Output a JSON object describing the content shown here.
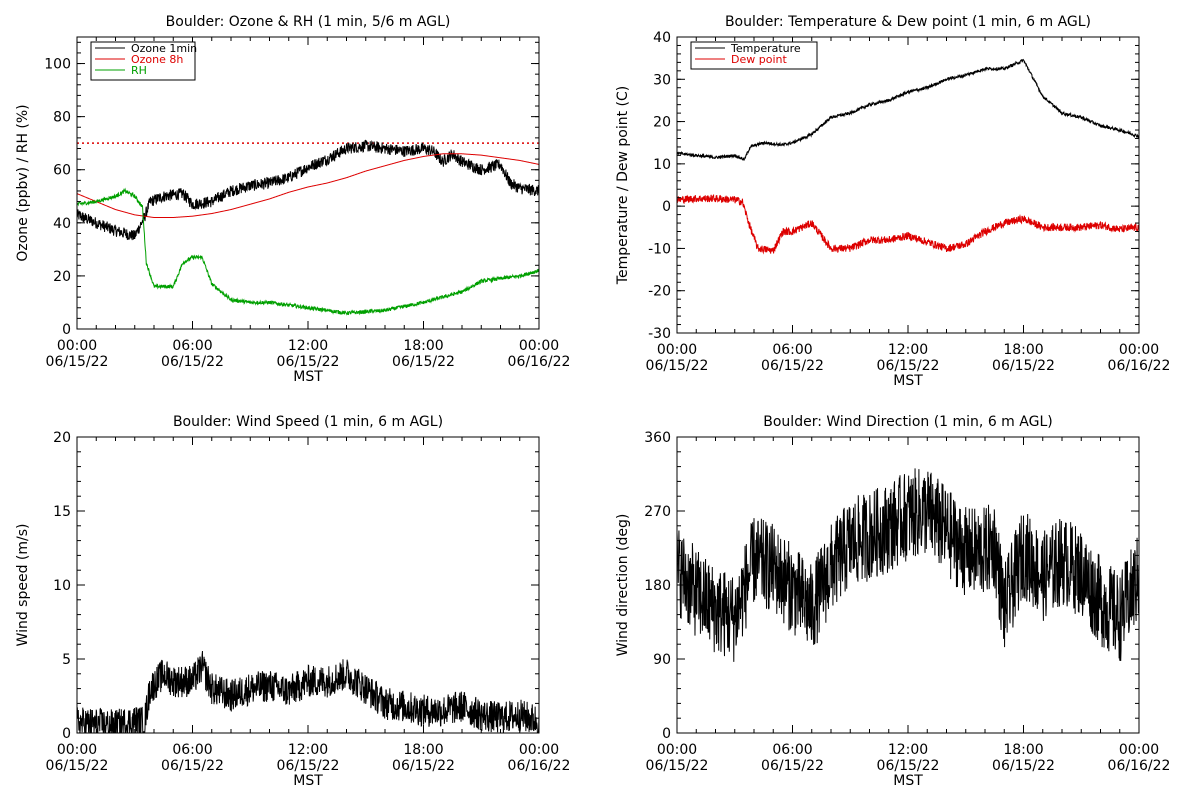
{
  "chart_data": [
    {
      "type": "line",
      "title": "Boulder: Ozone & RH (1 min, 5/6 m AGL)",
      "xlabel": "MST",
      "ylabel": "Ozone (ppbv) / RH (%)",
      "x_ticks": [
        {
          "time": "00:00",
          "date": "06/15/22"
        },
        {
          "time": "06:00",
          "date": "06/15/22"
        },
        {
          "time": "12:00",
          "date": "06/15/22"
        },
        {
          "time": "18:00",
          "date": "06/15/22"
        },
        {
          "time": "00:00",
          "date": "06/16/22"
        }
      ],
      "xlim": [
        "06/15/22 00:00",
        "06/16/22 00:00"
      ],
      "x_unit": "hours since 06/15/22 00:00 MST",
      "ylim": [
        0,
        110
      ],
      "y_ticks": [
        0,
        20,
        40,
        60,
        80,
        100
      ],
      "legend_position": "top-left",
      "reference_line": {
        "y": 70,
        "color": "#dd0000",
        "style": "dotted"
      },
      "series": [
        {
          "name": "Ozone 1min",
          "color": "#000000",
          "noise": 2.2,
          "points": [
            [
              0,
              43
            ],
            [
              1,
              40
            ],
            [
              2,
              37
            ],
            [
              3,
              35
            ],
            [
              3.5,
              42
            ],
            [
              3.8,
              48
            ],
            [
              4.5,
              50
            ],
            [
              5.5,
              51
            ],
            [
              6,
              47
            ],
            [
              7,
              48
            ],
            [
              8,
              52
            ],
            [
              9,
              54
            ],
            [
              10,
              55
            ],
            [
              11,
              57
            ],
            [
              12,
              61
            ],
            [
              13,
              64
            ],
            [
              14,
              68
            ],
            [
              15,
              69
            ],
            [
              16,
              68
            ],
            [
              17,
              67
            ],
            [
              18,
              68
            ],
            [
              18.5,
              67
            ],
            [
              19,
              63
            ],
            [
              19.5,
              66
            ],
            [
              20,
              63
            ],
            [
              21,
              60
            ],
            [
              22,
              62
            ],
            [
              22.5,
              55
            ],
            [
              23,
              53
            ],
            [
              24,
              52
            ]
          ]
        },
        {
          "name": "Ozone 8h",
          "color": "#dd0000",
          "noise": 0,
          "points": [
            [
              0,
              51
            ],
            [
              1,
              48
            ],
            [
              2,
              45
            ],
            [
              3,
              43
            ],
            [
              4,
              42
            ],
            [
              5,
              42
            ],
            [
              6,
              42.5
            ],
            [
              7,
              43.5
            ],
            [
              8,
              45
            ],
            [
              9,
              47
            ],
            [
              10,
              49
            ],
            [
              11,
              51.5
            ],
            [
              12,
              53.5
            ],
            [
              13,
              55
            ],
            [
              14,
              57
            ],
            [
              15,
              59.5
            ],
            [
              16,
              61.5
            ],
            [
              17,
              63.5
            ],
            [
              18,
              65
            ],
            [
              19,
              66
            ],
            [
              20,
              66
            ],
            [
              21,
              65.5
            ],
            [
              22,
              64.5
            ],
            [
              23,
              63.5
            ],
            [
              24,
              62
            ]
          ]
        },
        {
          "name": "RH",
          "color": "#00a000",
          "noise": 0.7,
          "points": [
            [
              0,
              47
            ],
            [
              1,
              48
            ],
            [
              2,
              50
            ],
            [
              2.5,
              52
            ],
            [
              3,
              50
            ],
            [
              3.4,
              46
            ],
            [
              3.6,
              25
            ],
            [
              4,
              16
            ],
            [
              5,
              16
            ],
            [
              5.5,
              25
            ],
            [
              6,
              27
            ],
            [
              6.5,
              27
            ],
            [
              7,
              17
            ],
            [
              8,
              11
            ],
            [
              9,
              10
            ],
            [
              10,
              10
            ],
            [
              12,
              8
            ],
            [
              14,
              6
            ],
            [
              16,
              7
            ],
            [
              18,
              10
            ],
            [
              20,
              14
            ],
            [
              21,
              18
            ],
            [
              22,
              19
            ],
            [
              23,
              20
            ],
            [
              24,
              22
            ]
          ]
        }
      ]
    },
    {
      "type": "line",
      "title": "Boulder: Temperature & Dew point (1 min, 6 m AGL)",
      "xlabel": "MST",
      "ylabel": "Temperature / Dew point (C)",
      "x_ticks": [
        {
          "time": "00:00",
          "date": "06/15/22"
        },
        {
          "time": "06:00",
          "date": "06/15/22"
        },
        {
          "time": "12:00",
          "date": "06/15/22"
        },
        {
          "time": "18:00",
          "date": "06/15/22"
        },
        {
          "time": "00:00",
          "date": "06/16/22"
        }
      ],
      "xlim": [
        "06/15/22 00:00",
        "06/16/22 00:00"
      ],
      "x_unit": "hours since 06/15/22 00:00 MST",
      "ylim": [
        -30,
        40
      ],
      "y_ticks": [
        -30,
        -20,
        -10,
        0,
        10,
        20,
        30,
        40
      ],
      "legend_position": "top-left",
      "series": [
        {
          "name": "Temperature",
          "color": "#000000",
          "noise": 0.35,
          "points": [
            [
              0,
              12.5
            ],
            [
              1,
              12
            ],
            [
              2,
              11.5
            ],
            [
              3,
              12
            ],
            [
              3.5,
              11
            ],
            [
              3.8,
              14
            ],
            [
              4.5,
              15
            ],
            [
              5.5,
              14.5
            ],
            [
              6,
              15
            ],
            [
              7,
              17
            ],
            [
              8,
              21
            ],
            [
              9,
              22
            ],
            [
              10,
              24
            ],
            [
              11,
              25
            ],
            [
              12,
              27
            ],
            [
              13,
              28
            ],
            [
              14,
              30
            ],
            [
              15,
              31
            ],
            [
              16,
              32.5
            ],
            [
              17,
              32.5
            ],
            [
              17.5,
              33.5
            ],
            [
              18,
              34.5
            ],
            [
              18.3,
              32
            ],
            [
              19,
              26
            ],
            [
              20,
              22
            ],
            [
              21,
              21
            ],
            [
              22,
              19
            ],
            [
              23,
              18
            ],
            [
              24,
              16.5
            ]
          ]
        },
        {
          "name": "Dew point",
          "color": "#dd0000",
          "noise": 0.9,
          "points": [
            [
              0,
              1.5
            ],
            [
              1,
              1.8
            ],
            [
              2,
              1.8
            ],
            [
              3,
              1.5
            ],
            [
              3.4,
              1
            ],
            [
              3.8,
              -5
            ],
            [
              4.2,
              -10
            ],
            [
              5,
              -10.5
            ],
            [
              5.5,
              -6
            ],
            [
              6,
              -6
            ],
            [
              6.5,
              -5
            ],
            [
              7,
              -4
            ],
            [
              7.5,
              -7
            ],
            [
              8,
              -10
            ],
            [
              9,
              -10
            ],
            [
              10,
              -8
            ],
            [
              11,
              -8
            ],
            [
              12,
              -7
            ],
            [
              13,
              -8.5
            ],
            [
              14,
              -10
            ],
            [
              15,
              -9
            ],
            [
              16,
              -6
            ],
            [
              17,
              -4
            ],
            [
              18,
              -3
            ],
            [
              18.5,
              -4
            ],
            [
              19,
              -5
            ],
            [
              20,
              -5
            ],
            [
              21,
              -5
            ],
            [
              22,
              -4.5
            ],
            [
              23,
              -5.5
            ],
            [
              24,
              -5
            ]
          ]
        }
      ]
    },
    {
      "type": "line",
      "title": "Boulder: Wind Speed (1 min, 6 m AGL)",
      "xlabel": "MST",
      "ylabel": "Wind speed (m/s)",
      "x_ticks": [
        {
          "time": "00:00",
          "date": "06/15/22"
        },
        {
          "time": "06:00",
          "date": "06/15/22"
        },
        {
          "time": "12:00",
          "date": "06/15/22"
        },
        {
          "time": "18:00",
          "date": "06/15/22"
        },
        {
          "time": "00:00",
          "date": "06/16/22"
        }
      ],
      "xlim": [
        "06/15/22 00:00",
        "06/16/22 00:00"
      ],
      "x_unit": "hours since 06/15/22 00:00 MST",
      "ylim": [
        0,
        20
      ],
      "y_ticks": [
        0,
        5,
        10,
        15,
        20
      ],
      "series": [
        {
          "name": "",
          "color": "#000000",
          "noise": 1.1,
          "points": [
            [
              0,
              0.7
            ],
            [
              1,
              0.6
            ],
            [
              2,
              0.5
            ],
            [
              3,
              0.8
            ],
            [
              3.5,
              0.7
            ],
            [
              3.8,
              3
            ],
            [
              4.5,
              4
            ],
            [
              5,
              3.5
            ],
            [
              6,
              3.5
            ],
            [
              6.5,
              4.5
            ],
            [
              7,
              3
            ],
            [
              8,
              2.5
            ],
            [
              9,
              3
            ],
            [
              10,
              3.2
            ],
            [
              11,
              2.8
            ],
            [
              12,
              3.5
            ],
            [
              13,
              3.5
            ],
            [
              14,
              4
            ],
            [
              15,
              3
            ],
            [
              16,
              2
            ],
            [
              17,
              1.8
            ],
            [
              18,
              1.5
            ],
            [
              19,
              1.5
            ],
            [
              20,
              1.8
            ],
            [
              21,
              1.2
            ],
            [
              22,
              1
            ],
            [
              23,
              1.2
            ],
            [
              24,
              0.8
            ]
          ]
        }
      ]
    },
    {
      "type": "line",
      "title": "Boulder: Wind Direction (1 min, 6 m AGL)",
      "xlabel": "MST",
      "ylabel": "Wind direction (deg)",
      "x_ticks": [
        {
          "time": "00:00",
          "date": "06/15/22"
        },
        {
          "time": "06:00",
          "date": "06/15/22"
        },
        {
          "time": "12:00",
          "date": "06/15/22"
        },
        {
          "time": "18:00",
          "date": "06/15/22"
        },
        {
          "time": "00:00",
          "date": "06/16/22"
        }
      ],
      "xlim": [
        "06/15/22 00:00",
        "06/16/22 00:00"
      ],
      "x_unit": "hours since 06/15/22 00:00 MST",
      "ylim": [
        0,
        360
      ],
      "y_ticks": [
        0,
        90,
        180,
        270,
        360
      ],
      "series": [
        {
          "name": "",
          "color": "#000000",
          "noise": 55,
          "points": [
            [
              0,
              200
            ],
            [
              1,
              170
            ],
            [
              2,
              150
            ],
            [
              3,
              140
            ],
            [
              4,
              210
            ],
            [
              5,
              200
            ],
            [
              6,
              175
            ],
            [
              7,
              150
            ],
            [
              8,
              200
            ],
            [
              9,
              230
            ],
            [
              10,
              240
            ],
            [
              11,
              250
            ],
            [
              12,
              265
            ],
            [
              13,
              270
            ],
            [
              14,
              245
            ],
            [
              15,
              220
            ],
            [
              16,
              220
            ],
            [
              16.5,
              230
            ],
            [
              17,
              150
            ],
            [
              18,
              220
            ],
            [
              19,
              190
            ],
            [
              20,
              210
            ],
            [
              21,
              195
            ],
            [
              22,
              160
            ],
            [
              23,
              140
            ],
            [
              24,
              190
            ]
          ]
        }
      ]
    }
  ]
}
